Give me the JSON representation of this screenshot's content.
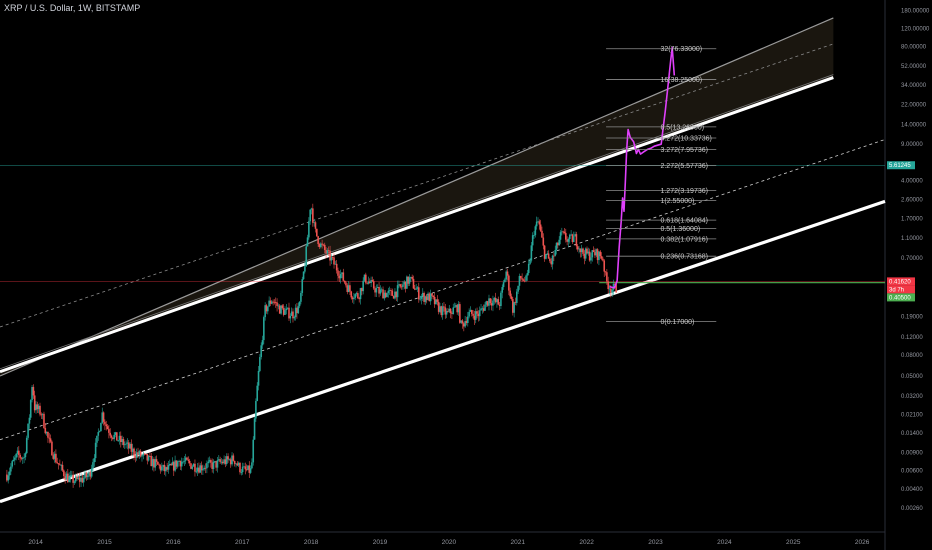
{
  "header": {
    "title": "XRP / U.S. Dollar, 1W, BITSTAMP"
  },
  "chart_data": {
    "type": "candlestick",
    "title": "XRP / U.S. Dollar, 1W, BITSTAMP",
    "y_scale": "log",
    "ylim": [
      0.0019,
      190
    ],
    "xlim": [
      2013.5,
      2026.35
    ],
    "y_ticks": [
      "180.00000",
      "120.00000",
      "80.00000",
      "52.00000",
      "34.00000",
      "22.00000",
      "14.00000",
      "9.00000",
      "5.61245",
      "4.00000",
      "2.60000",
      "1.70000",
      "1.10000",
      "0.70000",
      "0.41620",
      "0.40500",
      "0.19000",
      "0.12000",
      "0.08000",
      "0.05000",
      "0.03200",
      "0.02100",
      "0.01400",
      "0.00900",
      "0.00600",
      "0.00400",
      "0.00260"
    ],
    "x_ticks": [
      "2014",
      "2015",
      "2016",
      "2017",
      "2018",
      "2019",
      "2020",
      "2021",
      "2022",
      "2023",
      "2024",
      "2025",
      "2026"
    ],
    "price_path": [
      [
        2013.6,
        0.0055
      ],
      [
        2013.75,
        0.0085
      ],
      [
        2013.85,
        0.008
      ],
      [
        2013.92,
        0.018
      ],
      [
        2013.97,
        0.045
      ],
      [
        2014.0,
        0.025
      ],
      [
        2014.1,
        0.022
      ],
      [
        2014.2,
        0.012
      ],
      [
        2014.3,
        0.008
      ],
      [
        2014.4,
        0.006
      ],
      [
        2014.5,
        0.005
      ],
      [
        2014.6,
        0.0048
      ],
      [
        2014.7,
        0.005
      ],
      [
        2014.8,
        0.0055
      ],
      [
        2014.9,
        0.011
      ],
      [
        2014.98,
        0.022
      ],
      [
        2015.05,
        0.016
      ],
      [
        2015.15,
        0.013
      ],
      [
        2015.3,
        0.011
      ],
      [
        2015.45,
        0.009
      ],
      [
        2015.6,
        0.008
      ],
      [
        2015.75,
        0.007
      ],
      [
        2015.9,
        0.006
      ],
      [
        2016.0,
        0.0065
      ],
      [
        2016.1,
        0.0075
      ],
      [
        2016.2,
        0.0072
      ],
      [
        2016.3,
        0.0068
      ],
      [
        2016.4,
        0.0065
      ],
      [
        2016.5,
        0.0068
      ],
      [
        2016.6,
        0.0068
      ],
      [
        2016.7,
        0.0072
      ],
      [
        2016.8,
        0.0075
      ],
      [
        2016.9,
        0.0078
      ],
      [
        2016.97,
        0.0065
      ],
      [
        2017.05,
        0.006
      ],
      [
        2017.15,
        0.006
      ],
      [
        2017.22,
        0.03
      ],
      [
        2017.27,
        0.07
      ],
      [
        2017.35,
        0.22
      ],
      [
        2017.45,
        0.28
      ],
      [
        2017.55,
        0.23
      ],
      [
        2017.65,
        0.21
      ],
      [
        2017.75,
        0.2
      ],
      [
        2017.85,
        0.24
      ],
      [
        2017.95,
        0.85
      ],
      [
        2018.01,
        2.5
      ],
      [
        2018.07,
        1.3
      ],
      [
        2018.15,
        0.95
      ],
      [
        2018.3,
        0.7
      ],
      [
        2018.45,
        0.48
      ],
      [
        2018.6,
        0.32
      ],
      [
        2018.7,
        0.3
      ],
      [
        2018.8,
        0.45
      ],
      [
        2018.9,
        0.38
      ],
      [
        2019.0,
        0.33
      ],
      [
        2019.2,
        0.31
      ],
      [
        2019.35,
        0.38
      ],
      [
        2019.45,
        0.44
      ],
      [
        2019.6,
        0.3
      ],
      [
        2019.75,
        0.29
      ],
      [
        2019.9,
        0.22
      ],
      [
        2020.0,
        0.2
      ],
      [
        2020.15,
        0.24
      ],
      [
        2020.2,
        0.15
      ],
      [
        2020.3,
        0.2
      ],
      [
        2020.45,
        0.2
      ],
      [
        2020.6,
        0.28
      ],
      [
        2020.75,
        0.25
      ],
      [
        2020.85,
        0.52
      ],
      [
        2020.95,
        0.22
      ],
      [
        2021.05,
        0.45
      ],
      [
        2021.15,
        0.42
      ],
      [
        2021.25,
        1.3
      ],
      [
        2021.32,
        1.6
      ],
      [
        2021.4,
        0.8
      ],
      [
        2021.5,
        0.62
      ],
      [
        2021.65,
        1.2
      ],
      [
        2021.75,
        1.05
      ],
      [
        2021.85,
        1.1
      ],
      [
        2021.95,
        0.8
      ],
      [
        2022.05,
        0.75
      ],
      [
        2022.15,
        0.78
      ],
      [
        2022.25,
        0.72
      ],
      [
        2022.3,
        0.42
      ],
      [
        2022.38,
        0.35
      ],
      [
        2022.45,
        0.36
      ]
    ],
    "projection_path": [
      [
        2022.35,
        0.37
      ],
      [
        2022.42,
        0.36
      ],
      [
        2022.46,
        0.42
      ],
      [
        2022.49,
        0.9
      ],
      [
        2022.52,
        1.6
      ],
      [
        2022.54,
        2.7
      ],
      [
        2022.56,
        2.0
      ],
      [
        2022.58,
        4.0
      ],
      [
        2022.6,
        8.0
      ],
      [
        2022.62,
        12.5
      ],
      [
        2022.65,
        10.5
      ],
      [
        2022.7,
        9.5
      ],
      [
        2022.72,
        8.4
      ],
      [
        2022.74,
        7.3
      ],
      [
        2022.77,
        8.0
      ],
      [
        2022.8,
        7.2
      ],
      [
        2022.85,
        7.6
      ],
      [
        2022.9,
        8.0
      ],
      [
        2022.95,
        8.2
      ],
      [
        2023.0,
        8.6
      ],
      [
        2023.05,
        8.8
      ],
      [
        2023.1,
        9.0
      ],
      [
        2023.13,
        13.0
      ],
      [
        2023.16,
        19.0
      ],
      [
        2023.2,
        34.0
      ],
      [
        2023.24,
        60.0
      ],
      [
        2023.26,
        78.0
      ],
      [
        2023.29,
        42.0
      ]
    ],
    "channel_lines": {
      "upper": [
        [
          2013.5,
          0.05
        ],
        [
          2025.6,
          152
        ]
      ],
      "middle": [
        [
          2013.5,
          0.055
        ],
        [
          2025.6,
          40
        ]
      ],
      "lower": [
        [
          2013.5,
          0.003
        ],
        [
          2026.35,
          2.5
        ]
      ],
      "dashed_upper_mid": [
        [
          2013.5,
          0.15
        ],
        [
          2025.6,
          85
        ]
      ],
      "dashed_lower_mid": [
        [
          2013.5,
          0.012
        ],
        [
          2026.35,
          10
        ]
      ]
    },
    "fib_levels": [
      {
        "label": "32(76.33000)",
        "value": 76.33
      },
      {
        "label": "16(38.25000)",
        "value": 38.25
      },
      {
        "label": "8.5(13.26000)",
        "value": 13.26
      },
      {
        "label": "4.272(10.33736)",
        "value": 10.33736
      },
      {
        "label": "3.272(7.95736)",
        "value": 7.95736
      },
      {
        "label": "2.272(5.57736)",
        "value": 5.57736
      },
      {
        "label": "1.272(3.19736)",
        "value": 3.19736
      },
      {
        "label": "1(2.55000)",
        "value": 2.55
      },
      {
        "label": "0.618(1.64084)",
        "value": 1.64084
      },
      {
        "label": "0.5(1.36000)",
        "value": 1.36
      },
      {
        "label": "0.382(1.07916)",
        "value": 1.07916
      },
      {
        "label": "0.236(0.73168)",
        "value": 0.73168
      },
      {
        "label": "0(0.17000)",
        "value": 0.17
      }
    ],
    "horizontal_levels": [
      {
        "name": "current",
        "value": 0.4162,
        "color": "#f23645"
      },
      {
        "name": "support",
        "value": 0.405,
        "color": "#4caf50"
      },
      {
        "name": "marker",
        "value": 5.61245,
        "color": "#26a69a"
      }
    ],
    "badges": [
      {
        "text": "5.61245",
        "value": 5.61245,
        "color": "#26a69a"
      },
      {
        "text": "0.41620",
        "value": 0.4162,
        "color": "#f23645"
      },
      {
        "text": "3d 7h",
        "value": 0.4162,
        "color": "#f23645"
      },
      {
        "text": "0.40500",
        "value": 0.405,
        "color": "#4caf50"
      }
    ],
    "colors": {
      "up": "#26a69a",
      "down": "#ef5350",
      "projection": "#e040fb",
      "channel": "#ffffff",
      "fill": "#1e1a12"
    }
  }
}
